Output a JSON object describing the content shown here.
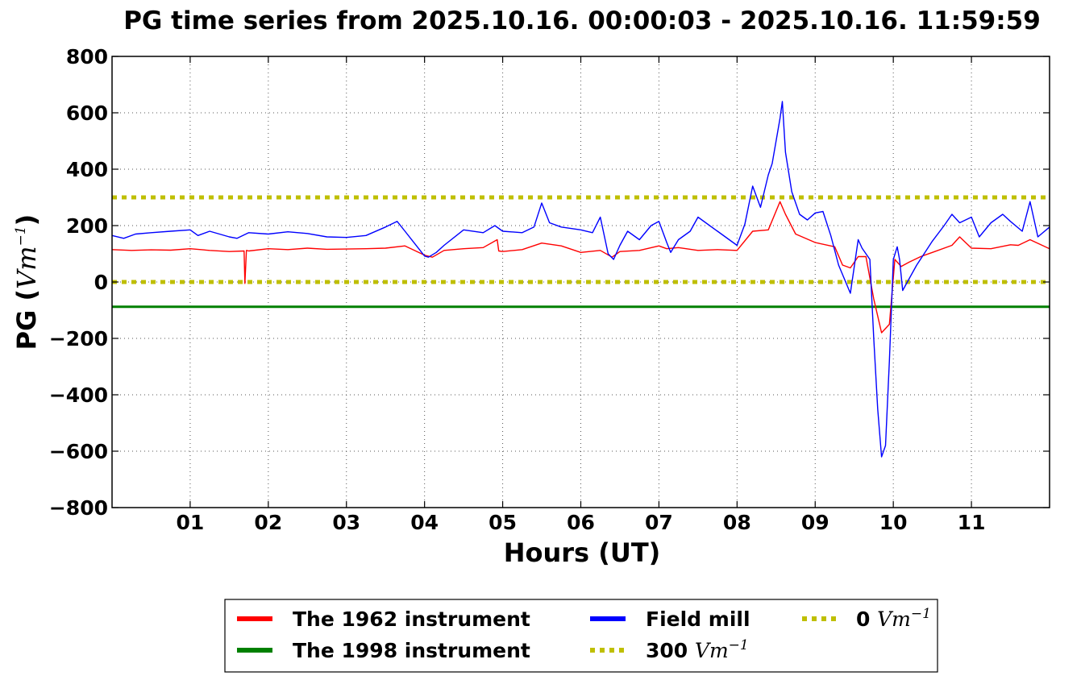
{
  "chart_data": {
    "type": "line",
    "title": "PG time series from 2025.10.16. 00:00:03 - 2025.10.16. 11:59:59",
    "xlabel": "Hours (UT)",
    "ylabel_bold": "PG (",
    "ylabel_math": "Vm",
    "ylabel_exp": "−1",
    "ylabel_close": ")",
    "xlim": [
      0,
      12
    ],
    "ylim": [
      -800,
      800
    ],
    "grid": true,
    "legend_position": "bottom-center",
    "x_ticks": [
      {
        "value": 1,
        "label": "01"
      },
      {
        "value": 2,
        "label": "02"
      },
      {
        "value": 3,
        "label": "03"
      },
      {
        "value": 4,
        "label": "04"
      },
      {
        "value": 5,
        "label": "05"
      },
      {
        "value": 6,
        "label": "06"
      },
      {
        "value": 7,
        "label": "07"
      },
      {
        "value": 8,
        "label": "08"
      },
      {
        "value": 9,
        "label": "09"
      },
      {
        "value": 10,
        "label": "10"
      },
      {
        "value": 11,
        "label": "11"
      }
    ],
    "y_ticks": [
      {
        "value": 800,
        "label": "800"
      },
      {
        "value": 600,
        "label": "600"
      },
      {
        "value": 400,
        "label": "400"
      },
      {
        "value": 200,
        "label": "200"
      },
      {
        "value": 0,
        "label": "0"
      },
      {
        "value": -200,
        "label": "−200"
      },
      {
        "value": -400,
        "label": "−400"
      },
      {
        "value": -600,
        "label": "−600"
      },
      {
        "value": -800,
        "label": "−800"
      }
    ],
    "series": [
      {
        "name": "The 1962 instrument",
        "color": "#ff0000",
        "x": [
          0,
          0.25,
          0.5,
          0.75,
          1.0,
          1.25,
          1.5,
          1.69,
          1.7,
          1.72,
          1.75,
          2.0,
          2.25,
          2.5,
          2.75,
          3.0,
          3.25,
          3.5,
          3.75,
          4.0,
          4.1,
          4.25,
          4.5,
          4.75,
          4.93,
          4.95,
          5.0,
          5.25,
          5.5,
          5.75,
          6.0,
          6.25,
          6.4,
          6.5,
          6.75,
          7.0,
          7.1,
          7.25,
          7.5,
          7.75,
          8.0,
          8.2,
          8.4,
          8.55,
          8.62,
          8.75,
          9.0,
          9.25,
          9.35,
          9.45,
          9.55,
          9.65,
          9.75,
          9.85,
          9.95,
          10.02,
          10.1,
          10.2,
          10.35,
          10.5,
          10.75,
          10.85,
          11.0,
          11.25,
          11.5,
          11.6,
          11.75,
          12.0
        ],
        "values": [
          115,
          112,
          114,
          113,
          118,
          112,
          108,
          110,
          -5,
          112,
          110,
          118,
          115,
          120,
          116,
          117,
          118,
          120,
          128,
          95,
          88,
          112,
          118,
          122,
          150,
          110,
          108,
          115,
          138,
          128,
          105,
          112,
          88,
          108,
          112,
          128,
          118,
          122,
          112,
          115,
          112,
          180,
          185,
          285,
          240,
          170,
          140,
          125,
          60,
          50,
          90,
          90,
          -60,
          -180,
          -150,
          80,
          55,
          70,
          90,
          105,
          130,
          160,
          120,
          118,
          132,
          130,
          150,
          118
        ]
      },
      {
        "name": "The 1998 instrument",
        "color": "#008000",
        "x": [
          0,
          12
        ],
        "values": [
          -88,
          -88
        ]
      },
      {
        "name": "Field mill",
        "color": "#0000ff",
        "x": [
          0,
          0.15,
          0.3,
          0.5,
          0.75,
          1.0,
          1.1,
          1.25,
          1.5,
          1.6,
          1.75,
          2.0,
          2.25,
          2.5,
          2.75,
          3.0,
          3.25,
          3.5,
          3.65,
          3.75,
          4.0,
          4.05,
          4.15,
          4.25,
          4.5,
          4.75,
          4.9,
          5.0,
          5.25,
          5.4,
          5.5,
          5.6,
          5.75,
          6.0,
          6.15,
          6.25,
          6.35,
          6.42,
          6.5,
          6.6,
          6.75,
          6.9,
          7.0,
          7.1,
          7.15,
          7.25,
          7.4,
          7.5,
          7.75,
          7.9,
          8.0,
          8.1,
          8.2,
          8.3,
          8.4,
          8.45,
          8.55,
          8.58,
          8.62,
          8.7,
          8.8,
          8.9,
          9.0,
          9.1,
          9.2,
          9.3,
          9.45,
          9.55,
          9.6,
          9.7,
          9.75,
          9.8,
          9.85,
          9.9,
          9.95,
          10.0,
          10.05,
          10.08,
          10.12,
          10.2,
          10.3,
          10.5,
          10.65,
          10.75,
          10.85,
          11.0,
          11.1,
          11.25,
          11.4,
          11.5,
          11.65,
          11.75,
          11.85,
          12.0
        ],
        "values": [
          165,
          155,
          170,
          175,
          180,
          185,
          165,
          180,
          160,
          155,
          175,
          170,
          178,
          172,
          160,
          158,
          165,
          195,
          215,
          180,
          92,
          88,
          105,
          130,
          185,
          175,
          200,
          180,
          175,
          195,
          280,
          210,
          195,
          185,
          175,
          230,
          100,
          80,
          130,
          180,
          150,
          200,
          215,
          140,
          105,
          150,
          180,
          230,
          180,
          150,
          130,
          205,
          340,
          265,
          380,
          420,
          580,
          640,
          460,
          320,
          240,
          220,
          245,
          250,
          165,
          60,
          -40,
          150,
          120,
          80,
          -200,
          -450,
          -620,
          -580,
          -280,
          80,
          125,
          80,
          -30,
          10,
          60,
          145,
          200,
          240,
          210,
          230,
          160,
          210,
          240,
          215,
          180,
          285,
          160,
          195
        ]
      },
      {
        "name": "300 Vm⁻¹",
        "color": "#bfbf00",
        "x": [
          0,
          12
        ],
        "values": [
          300,
          300
        ]
      },
      {
        "name": "0 Vm⁻¹",
        "color": "#bfbf00",
        "x": [
          0,
          12
        ],
        "values": [
          0,
          0
        ]
      }
    ]
  },
  "legend": {
    "items": [
      {
        "text": "The 1962 instrument",
        "color": "#ff0000",
        "style": "solid"
      },
      {
        "text": "The 1998 instrument",
        "color": "#008000",
        "style": "solid"
      },
      {
        "text": "Field mill",
        "color": "#0000ff",
        "style": "solid"
      },
      {
        "text": "300 ",
        "math": "Vm",
        "exp": "−1",
        "color": "#bfbf00",
        "style": "dotted"
      },
      {
        "text": "0 ",
        "math": "Vm",
        "exp": "−1",
        "color": "#bfbf00",
        "style": "dotted"
      }
    ]
  }
}
